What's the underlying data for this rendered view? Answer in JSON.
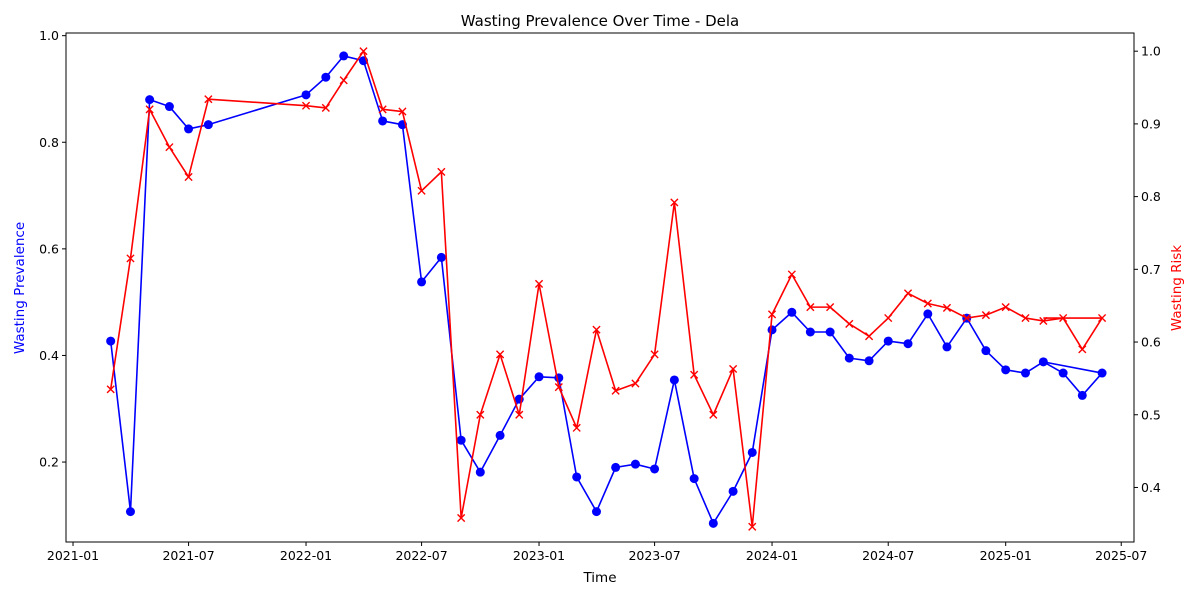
{
  "chart_data": {
    "type": "line",
    "title": "Wasting Prevalence Over Time - Dela",
    "xlabel": "Time",
    "ylabel_left": "Wasting Prevalence",
    "ylabel_right": "Wasting Risk",
    "colors": {
      "left": "#0000ff",
      "right": "#ff0000"
    },
    "xlim": [
      "2020-12-21",
      "2025-07-21"
    ],
    "ylim_left": [
      0.05,
      1.005
    ],
    "ylim_right": [
      0.325,
      1.025
    ],
    "x_ticks": [
      "2021-01",
      "2021-07",
      "2022-01",
      "2022-07",
      "2023-01",
      "2023-07",
      "2024-01",
      "2024-07",
      "2025-01",
      "2025-07"
    ],
    "y_ticks_left": [
      "0.2",
      "0.4",
      "0.6",
      "0.8",
      "1.0"
    ],
    "y_ticks_right": [
      "0.4",
      "0.5",
      "0.6",
      "0.7",
      "0.8",
      "0.9",
      "1.0"
    ],
    "grid": false,
    "series": [
      {
        "axis": "left",
        "marker": "circle",
        "points": [
          [
            "2021-03-01",
            0.427
          ],
          [
            "2021-04-01",
            0.107
          ],
          [
            "2021-05-01",
            0.88
          ],
          [
            "2021-06-01",
            0.867
          ],
          [
            "2021-07-01",
            0.825
          ],
          [
            "2021-08-01",
            0.833
          ],
          [
            "2022-01-01",
            0.889
          ],
          [
            "2022-02-01",
            0.922
          ],
          [
            "2022-03-01",
            0.962
          ],
          [
            "2022-04-01",
            0.953
          ],
          [
            "2022-05-01",
            0.84
          ],
          [
            "2022-06-01",
            0.833
          ],
          [
            "2022-07-01",
            0.538
          ],
          [
            "2022-08-01",
            0.584
          ],
          [
            "2022-09-01",
            0.241
          ],
          [
            "2022-10-01",
            0.181
          ],
          [
            "2022-11-01",
            0.25
          ],
          [
            "2022-12-01",
            0.318
          ],
          [
            "2023-01-01",
            0.36
          ],
          [
            "2023-02-01",
            0.358
          ],
          [
            "2023-03-01",
            0.172
          ],
          [
            "2023-04-01",
            0.107
          ],
          [
            "2023-05-01",
            0.19
          ],
          [
            "2023-06-01",
            0.196
          ],
          [
            "2023-07-01",
            0.187
          ],
          [
            "2023-08-01",
            0.354
          ],
          [
            "2023-09-01",
            0.169
          ],
          [
            "2023-10-01",
            0.085
          ],
          [
            "2023-11-01",
            0.145
          ],
          [
            "2023-12-01",
            0.218
          ],
          [
            "2024-01-01",
            0.448
          ],
          [
            "2024-02-01",
            0.481
          ],
          [
            "2024-03-01",
            0.444
          ],
          [
            "2024-04-01",
            0.444
          ],
          [
            "2024-05-01",
            0.395
          ],
          [
            "2024-06-01",
            0.39
          ],
          [
            "2024-07-01",
            0.427
          ],
          [
            "2024-08-01",
            0.422
          ],
          [
            "2024-09-01",
            0.478
          ],
          [
            "2024-10-01",
            0.416
          ],
          [
            "2024-11-01",
            0.47
          ],
          [
            "2024-12-01",
            0.409
          ],
          [
            "2025-01-01",
            0.373
          ],
          [
            "2025-02-01",
            0.367
          ],
          [
            "2025-03-01",
            0.388
          ],
          [
            "2025-04-01",
            0.367
          ],
          [
            "2025-05-01",
            0.325
          ],
          [
            "2025-06-01",
            0.367
          ]
        ]
      },
      {
        "axis": "right",
        "marker": "x",
        "points": [
          [
            "2021-03-01",
            0.535
          ],
          [
            "2021-04-01",
            0.715
          ],
          [
            "2021-05-01",
            0.92
          ],
          [
            "2021-06-01",
            0.868
          ],
          [
            "2021-07-01",
            0.827
          ],
          [
            "2021-08-01",
            0.934
          ],
          [
            "2022-01-01",
            0.925
          ],
          [
            "2022-02-01",
            0.922
          ],
          [
            "2022-03-01",
            0.96
          ],
          [
            "2022-04-01",
            1.0
          ],
          [
            "2022-05-01",
            0.92
          ],
          [
            "2022-06-01",
            0.917
          ],
          [
            "2022-07-01",
            0.808
          ],
          [
            "2022-08-01",
            0.834
          ],
          [
            "2022-09-01",
            0.358
          ],
          [
            "2022-10-01",
            0.5
          ],
          [
            "2022-11-01",
            0.583
          ],
          [
            "2022-12-01",
            0.5
          ],
          [
            "2023-01-01",
            0.68
          ],
          [
            "2023-02-01",
            0.538
          ],
          [
            "2023-03-01",
            0.482
          ],
          [
            "2023-04-01",
            0.617
          ],
          [
            "2023-05-01",
            0.533
          ],
          [
            "2023-06-01",
            0.543
          ],
          [
            "2023-07-01",
            0.583
          ],
          [
            "2023-08-01",
            0.792
          ],
          [
            "2023-09-01",
            0.555
          ],
          [
            "2023-10-01",
            0.5
          ],
          [
            "2023-11-01",
            0.563
          ],
          [
            "2023-12-01",
            0.346
          ],
          [
            "2024-01-01",
            0.638
          ],
          [
            "2024-02-01",
            0.693
          ],
          [
            "2024-03-01",
            0.648
          ],
          [
            "2024-04-01",
            0.648
          ],
          [
            "2024-05-01",
            0.625
          ],
          [
            "2024-06-01",
            0.608
          ],
          [
            "2024-07-01",
            0.633
          ],
          [
            "2024-08-01",
            0.667
          ],
          [
            "2024-09-01",
            0.653
          ],
          [
            "2024-10-01",
            0.647
          ],
          [
            "2024-11-01",
            0.633
          ],
          [
            "2024-12-01",
            0.637
          ],
          [
            "2025-01-01",
            0.648
          ],
          [
            "2025-02-01",
            0.633
          ],
          [
            "2025-03-01",
            0.629
          ],
          [
            "2025-04-01",
            0.633
          ],
          [
            "2025-05-01",
            0.59
          ],
          [
            "2025-06-01",
            0.633
          ]
        ]
      },
      {
        "axis": "left",
        "marker": "line-only",
        "points": [
          [
            "2025-03-01",
            0.388
          ],
          [
            "2025-06-01",
            0.367
          ]
        ]
      },
      {
        "axis": "right",
        "marker": "line-only",
        "points": [
          [
            "2025-03-01",
            0.633
          ],
          [
            "2025-06-01",
            0.633
          ]
        ]
      }
    ]
  }
}
